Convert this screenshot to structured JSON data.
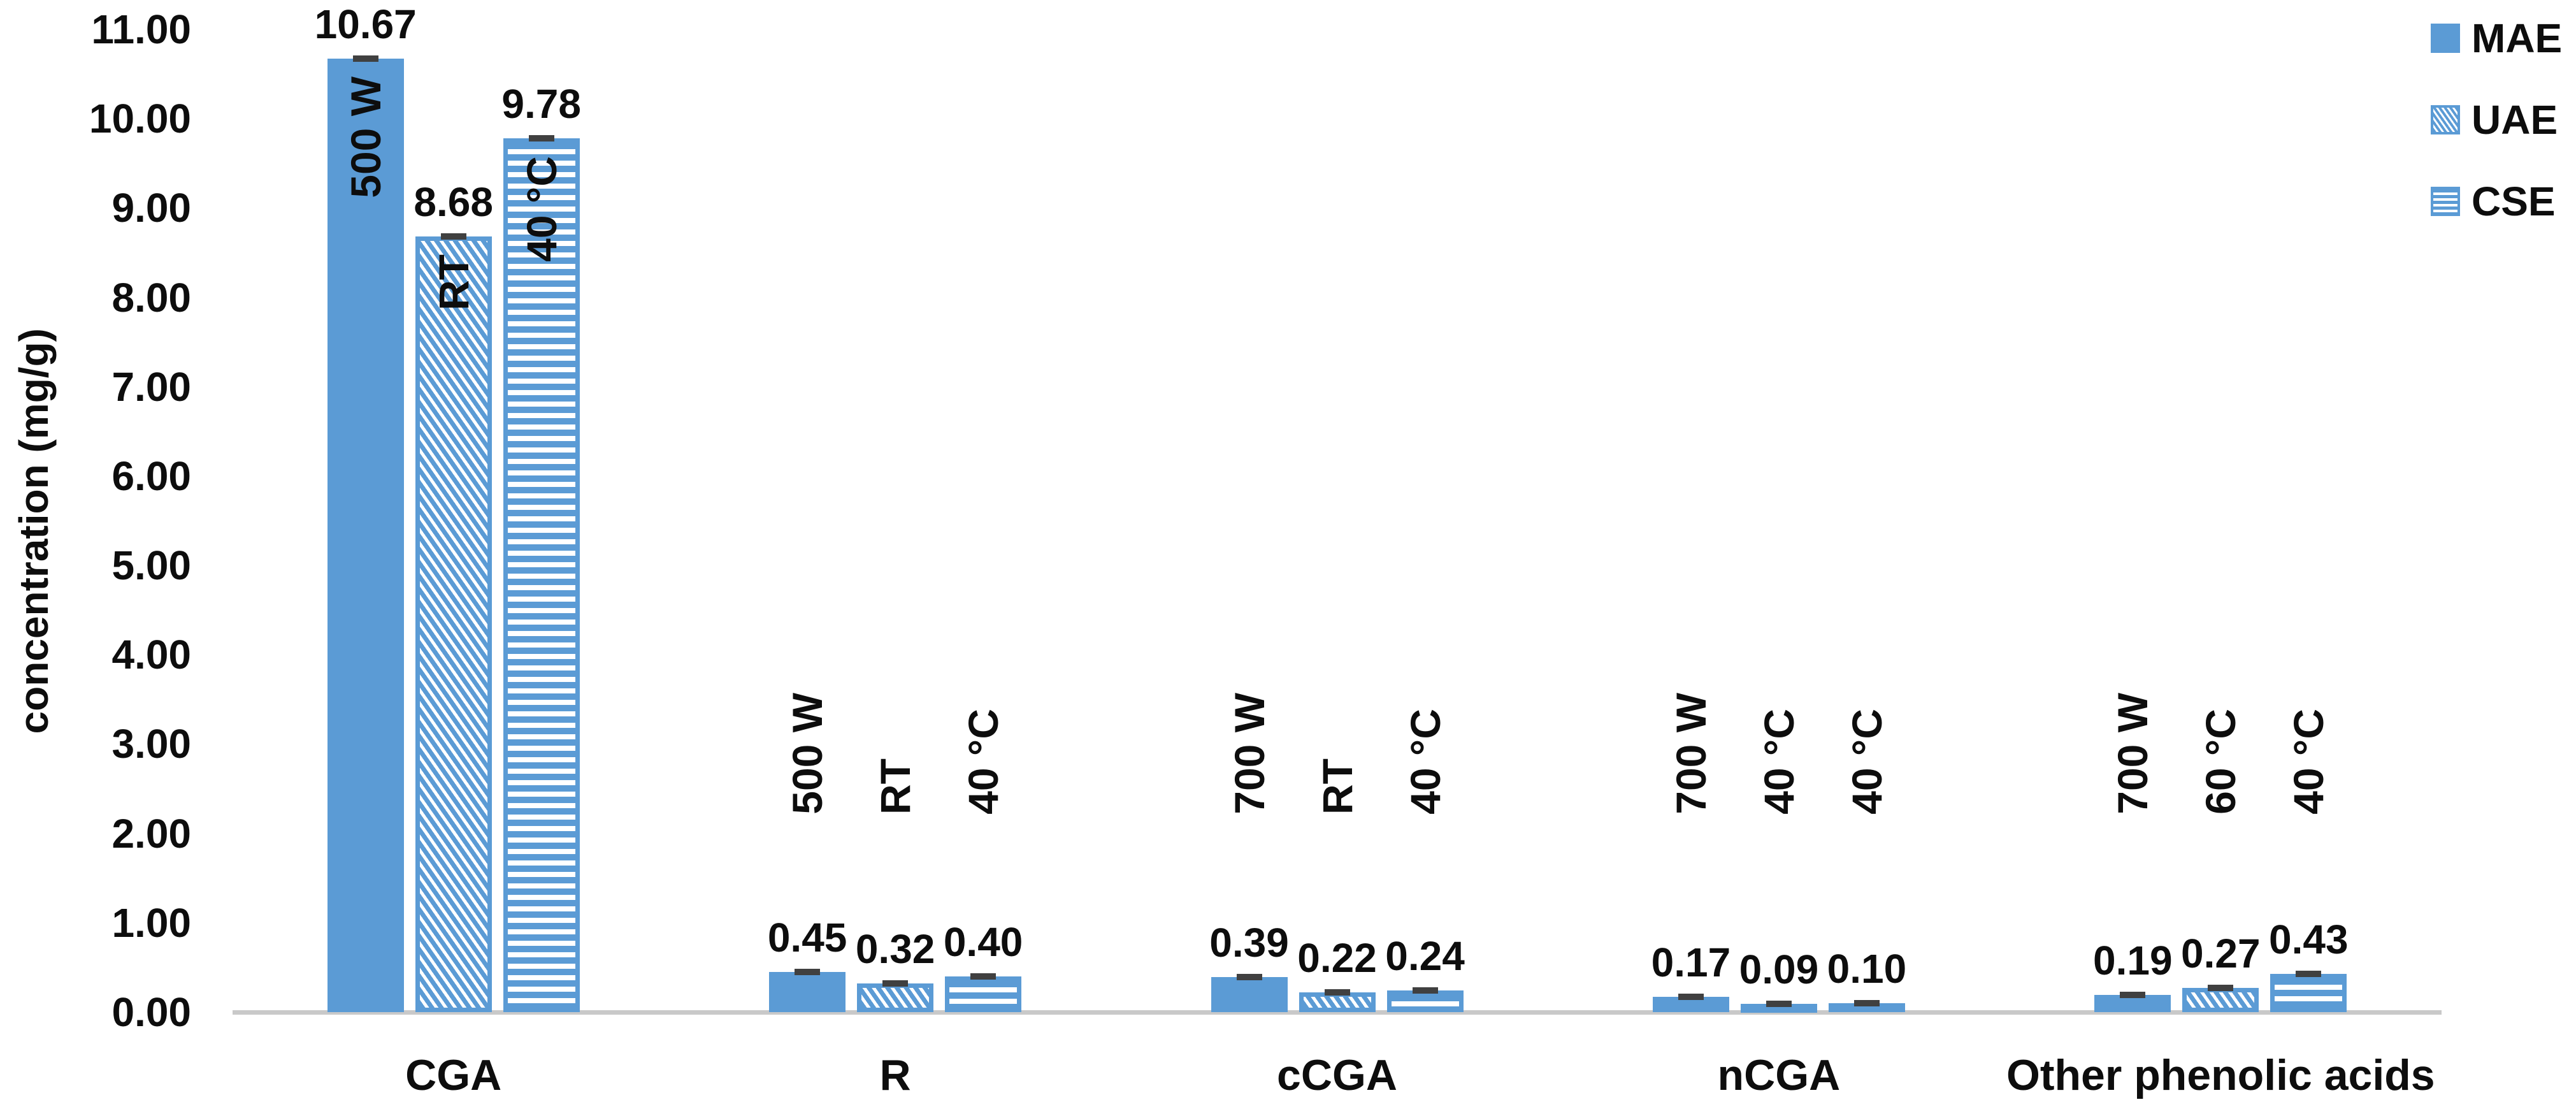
{
  "chart_data": {
    "type": "bar",
    "title": "",
    "xlabel": "",
    "ylabel": "concentration (mg/g)",
    "grid": false,
    "ylim": [
      0,
      11
    ],
    "y_axis": {
      "min": 0,
      "max": 11,
      "step": 1,
      "tick_labels": [
        "0.00",
        "1.00",
        "2.00",
        "3.00",
        "4.00",
        "5.00",
        "6.00",
        "7.00",
        "8.00",
        "9.00",
        "10.00",
        "11.00"
      ]
    },
    "categories": [
      "CGA",
      "R",
      "cCGA",
      "nCGA",
      "Other phenolic acids"
    ],
    "series": [
      {
        "name": "MAE",
        "pattern": "solid",
        "values": [
          10.67,
          0.45,
          0.39,
          0.17,
          0.19
        ],
        "value_labels": [
          "10.67",
          "0.45",
          "0.39",
          "0.17",
          "0.19"
        ],
        "condition_labels": [
          "500 W",
          "500 W",
          "700 W",
          "700 W",
          "700 W"
        ]
      },
      {
        "name": "UAE",
        "pattern": "diagonal-stripes",
        "values": [
          8.68,
          0.32,
          0.22,
          0.09,
          0.27
        ],
        "value_labels": [
          "8.68",
          "0.32",
          "0.22",
          "0.09",
          "0.27"
        ],
        "condition_labels": [
          "RT",
          "RT",
          "RT",
          "40 °C",
          "60 °C"
        ]
      },
      {
        "name": "CSE",
        "pattern": "horizontal-stripes",
        "values": [
          9.78,
          0.4,
          0.24,
          0.1,
          0.43
        ],
        "value_labels": [
          "9.78",
          "0.40",
          "0.24",
          "0.10",
          "0.43"
        ],
        "condition_labels": [
          "40 °C",
          "40 °C",
          "40 °C",
          "40 °C",
          "40 °C"
        ]
      }
    ],
    "legend": {
      "position": "top-right",
      "entries": [
        "MAE",
        "UAE",
        "CSE"
      ]
    },
    "error_bars": "short dark caps at bar tops",
    "colors": {
      "bar_blue": "#5B9BD5",
      "pattern_border": "#5B9BD5",
      "error_cap": "#404040",
      "axis_line": "#c9c9c9",
      "text": "#0d0d0d"
    }
  }
}
